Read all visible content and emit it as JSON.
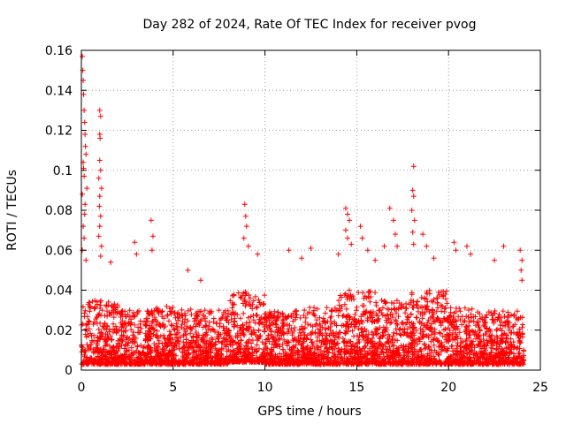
{
  "chart_data": {
    "type": "scatter",
    "title": "Day 282 of 2024, Rate Of TEC Index for receiver pvog",
    "xlabel": "GPS time / hours",
    "ylabel": "ROTI / TECUs",
    "xlim": [
      0,
      25
    ],
    "ylim": [
      0,
      0.16
    ],
    "xticks": [
      0,
      5,
      10,
      15,
      20,
      25
    ],
    "xtick_labels": [
      "0",
      "5",
      "10",
      "15",
      "20",
      "25"
    ],
    "yticks": [
      0,
      0.02,
      0.04,
      0.06,
      0.08,
      0.1,
      0.12,
      0.14,
      0.16
    ],
    "ytick_labels": [
      "0",
      "0.02",
      "0.04",
      "0.06",
      "0.08",
      "0.1",
      "0.12",
      "0.14",
      "0.16"
    ],
    "grid": true,
    "marker": "+",
    "color": "#ff0000",
    "series": [
      {
        "name": "ROTI",
        "points": [
          [
            0.05,
            0.157
          ],
          [
            0.08,
            0.15
          ],
          [
            0.1,
            0.145
          ],
          [
            0.12,
            0.138
          ],
          [
            0.15,
            0.13
          ],
          [
            0.18,
            0.124
          ],
          [
            0.2,
            0.118
          ],
          [
            0.22,
            0.112
          ],
          [
            0.25,
            0.108
          ],
          [
            0.1,
            0.104
          ],
          [
            0.12,
            0.101
          ],
          [
            0.15,
            0.097
          ],
          [
            0.3,
            0.091
          ],
          [
            0.05,
            0.088
          ],
          [
            0.2,
            0.083
          ],
          [
            0.18,
            0.078
          ],
          [
            0.1,
            0.072
          ],
          [
            0.15,
            0.066
          ],
          [
            0.05,
            0.06
          ],
          [
            0.25,
            0.055
          ],
          [
            1.0,
            0.13
          ],
          [
            1.05,
            0.127
          ],
          [
            1.0,
            0.118
          ],
          [
            1.02,
            0.116
          ],
          [
            1.0,
            0.105
          ],
          [
            1.05,
            0.1
          ],
          [
            0.95,
            0.096
          ],
          [
            1.1,
            0.091
          ],
          [
            1.0,
            0.087
          ],
          [
            0.98,
            0.082
          ],
          [
            1.05,
            0.077
          ],
          [
            1.0,
            0.072
          ],
          [
            0.95,
            0.067
          ],
          [
            1.1,
            0.062
          ],
          [
            1.05,
            0.057
          ],
          [
            1.6,
            0.054
          ],
          [
            2.9,
            0.064
          ],
          [
            3.0,
            0.058
          ],
          [
            3.8,
            0.075
          ],
          [
            3.9,
            0.067
          ],
          [
            3.85,
            0.06
          ],
          [
            5.8,
            0.05
          ],
          [
            6.5,
            0.045
          ],
          [
            8.9,
            0.083
          ],
          [
            8.95,
            0.077
          ],
          [
            9.0,
            0.072
          ],
          [
            8.85,
            0.066
          ],
          [
            9.1,
            0.062
          ],
          [
            9.6,
            0.058
          ],
          [
            11.3,
            0.06
          ],
          [
            12.0,
            0.056
          ],
          [
            12.5,
            0.061
          ],
          [
            14.0,
            0.058
          ],
          [
            14.4,
            0.081
          ],
          [
            14.5,
            0.078
          ],
          [
            14.6,
            0.075
          ],
          [
            14.4,
            0.07
          ],
          [
            14.5,
            0.066
          ],
          [
            14.7,
            0.063
          ],
          [
            15.2,
            0.072
          ],
          [
            15.3,
            0.066
          ],
          [
            15.6,
            0.06
          ],
          [
            16.0,
            0.055
          ],
          [
            16.5,
            0.062
          ],
          [
            16.8,
            0.081
          ],
          [
            17.0,
            0.075
          ],
          [
            17.1,
            0.068
          ],
          [
            17.2,
            0.062
          ],
          [
            18.1,
            0.102
          ],
          [
            18.05,
            0.09
          ],
          [
            18.1,
            0.087
          ],
          [
            18.0,
            0.08
          ],
          [
            18.15,
            0.075
          ],
          [
            18.05,
            0.069
          ],
          [
            18.1,
            0.063
          ],
          [
            18.6,
            0.068
          ],
          [
            18.8,
            0.062
          ],
          [
            19.2,
            0.056
          ],
          [
            20.3,
            0.064
          ],
          [
            20.4,
            0.06
          ],
          [
            21.0,
            0.062
          ],
          [
            21.2,
            0.058
          ],
          [
            22.5,
            0.055
          ],
          [
            23.0,
            0.062
          ],
          [
            23.9,
            0.06
          ],
          [
            24.0,
            0.055
          ],
          [
            23.95,
            0.05
          ],
          [
            24.0,
            0.045
          ]
        ],
        "density_bands": [
          [
            0.0,
            2.0,
            0.003,
            0.035
          ],
          [
            2.0,
            4.0,
            0.003,
            0.03
          ],
          [
            4.0,
            6.0,
            0.003,
            0.032
          ],
          [
            6.0,
            8.0,
            0.003,
            0.03
          ],
          [
            8.0,
            10.0,
            0.004,
            0.04
          ],
          [
            10.0,
            12.0,
            0.003,
            0.03
          ],
          [
            12.0,
            14.0,
            0.003,
            0.032
          ],
          [
            14.0,
            16.0,
            0.003,
            0.04
          ],
          [
            16.0,
            18.0,
            0.003,
            0.035
          ],
          [
            18.0,
            20.0,
            0.003,
            0.04
          ],
          [
            20.0,
            22.0,
            0.003,
            0.032
          ],
          [
            22.0,
            24.1,
            0.003,
            0.03
          ]
        ]
      }
    ]
  }
}
